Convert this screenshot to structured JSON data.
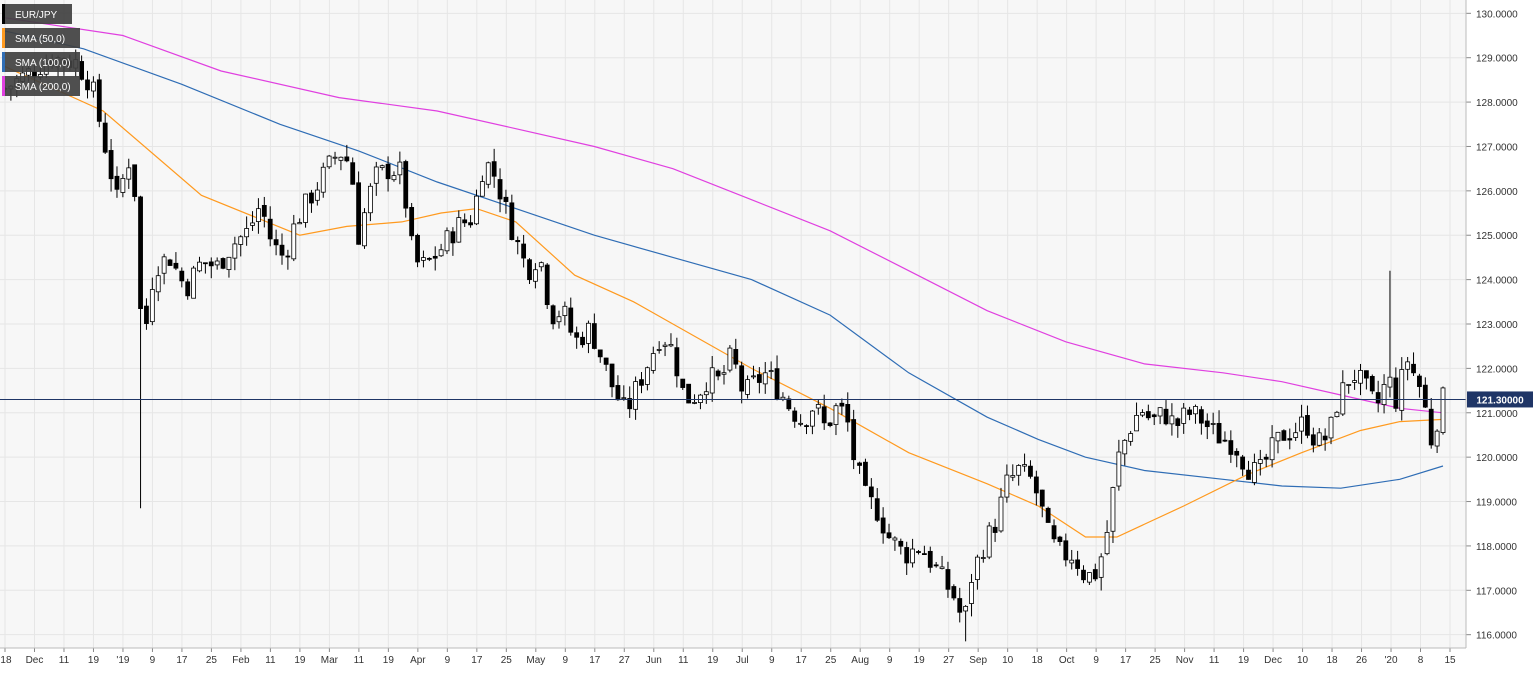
{
  "colors": {
    "background": "#f7f7f7",
    "grid": "#e6e6e6",
    "candle": "#000000",
    "candle_up": "#ffffff",
    "sma50": "#ff9a1f",
    "sma100": "#2f6db5",
    "sma200": "#e040e0",
    "price_line": "#1f3566",
    "price_tag": "#1f3566",
    "legend_bg": "#404040",
    "axis_text": "#333333"
  },
  "chart_data": {
    "type": "candlestick",
    "symbol": "EUR/JPY",
    "timeframe": "daily",
    "ylim": [
      115.7,
      130.3
    ],
    "y_ticks": [
      "116.0000",
      "117.0000",
      "118.0000",
      "119.0000",
      "120.0000",
      "121.0000",
      "122.0000",
      "123.0000",
      "124.0000",
      "125.0000",
      "126.0000",
      "127.0000",
      "128.0000",
      "129.0000",
      "130.0000"
    ],
    "x_ticks": [
      "'18",
      "Dec",
      "11",
      "19",
      "'19",
      "9",
      "17",
      "25",
      "Feb",
      "11",
      "19",
      "Mar",
      "11",
      "19",
      "Apr",
      "9",
      "17",
      "25",
      "May",
      "9",
      "17",
      "27",
      "Jun",
      "11",
      "19",
      "Jul",
      "9",
      "17",
      "25",
      "Aug",
      "9",
      "19",
      "27",
      "Sep",
      "10",
      "18",
      "Oct",
      "9",
      "17",
      "25",
      "Nov",
      "11",
      "19",
      "Dec",
      "10",
      "18",
      "26",
      "'20",
      "8",
      "15"
    ],
    "grid": true,
    "legend_position": "top-left",
    "legend": [
      {
        "label": "EUR/JPY",
        "color": "#000000"
      },
      {
        "label": "SMA (50,0)",
        "color": "#ff9a1f"
      },
      {
        "label": "SMA (100,0)",
        "color": "#2f6db5"
      },
      {
        "label": "SMA (200,0)",
        "color": "#e040e0"
      }
    ],
    "last_price": 121.3,
    "last_price_label": "121.30000",
    "close_path": [
      [
        0,
        128.3
      ],
      [
        5,
        128.6
      ],
      [
        12,
        129.0
      ],
      [
        18,
        128.9
      ],
      [
        22,
        128.4
      ],
      [
        26,
        126.8
      ],
      [
        29,
        125.6
      ],
      [
        31,
        126.9
      ],
      [
        33,
        126.0
      ],
      [
        35,
        122.4
      ],
      [
        38,
        124.3
      ],
      [
        42,
        124.5
      ],
      [
        46,
        123.8
      ],
      [
        50,
        124.4
      ],
      [
        54,
        124.3
      ],
      [
        58,
        124.8
      ],
      [
        62,
        125.1
      ],
      [
        65,
        125.7
      ],
      [
        68,
        124.8
      ],
      [
        71,
        124.5
      ],
      [
        74,
        125.3
      ],
      [
        78,
        125.9
      ],
      [
        82,
        126.5
      ],
      [
        85,
        126.9
      ],
      [
        88,
        126.6
      ],
      [
        90,
        125.0
      ],
      [
        94,
        126.3
      ],
      [
        98,
        126.5
      ],
      [
        101,
        126.4
      ],
      [
        104,
        124.4
      ],
      [
        107,
        124.3
      ],
      [
        111,
        124.7
      ],
      [
        115,
        125.2
      ],
      [
        119,
        125.4
      ],
      [
        122,
        126.7
      ],
      [
        125,
        126.3
      ],
      [
        127,
        125.7
      ],
      [
        130,
        124.9
      ],
      [
        133,
        124.2
      ],
      [
        136,
        124.6
      ],
      [
        139,
        123.2
      ],
      [
        142,
        123.3
      ],
      [
        145,
        122.6
      ],
      [
        149,
        122.9
      ],
      [
        152,
        122.2
      ],
      [
        155,
        121.5
      ],
      [
        158,
        121.0
      ],
      [
        161,
        121.6
      ],
      [
        164,
        122.2
      ],
      [
        167,
        122.8
      ],
      [
        170,
        122.4
      ],
      [
        173,
        121.3
      ],
      [
        176,
        121.4
      ],
      [
        179,
        121.8
      ],
      [
        182,
        121.7
      ],
      [
        185,
        122.3
      ],
      [
        188,
        121.4
      ],
      [
        191,
        121.7
      ],
      [
        194,
        121.9
      ],
      [
        197,
        121.5
      ],
      [
        200,
        121.1
      ],
      [
        203,
        120.8
      ],
      [
        206,
        121.2
      ],
      [
        209,
        120.6
      ],
      [
        211,
        121.1
      ],
      [
        214,
        121.0
      ],
      [
        216,
        120.0
      ],
      [
        219,
        119.1
      ],
      [
        222,
        118.8
      ],
      [
        225,
        118.2
      ],
      [
        229,
        117.8
      ],
      [
        233,
        118.0
      ],
      [
        236,
        117.6
      ],
      [
        239,
        117.2
      ],
      [
        242,
        116.8
      ],
      [
        244,
        116.2
      ],
      [
        246,
        117.3
      ],
      [
        249,
        118.0
      ],
      [
        252,
        118.5
      ],
      [
        255,
        119.4
      ],
      [
        258,
        119.7
      ],
      [
        261,
        119.5
      ],
      [
        263,
        119.1
      ],
      [
        266,
        118.1
      ],
      [
        269,
        117.8
      ],
      [
        272,
        117.8
      ],
      [
        275,
        117.3
      ],
      [
        278,
        117.4
      ],
      [
        281,
        118.5
      ],
      [
        283,
        119.9
      ],
      [
        286,
        120.6
      ],
      [
        289,
        121.1
      ],
      [
        292,
        120.8
      ],
      [
        295,
        121.0
      ],
      [
        298,
        120.7
      ],
      [
        301,
        121.0
      ],
      [
        304,
        120.9
      ],
      [
        307,
        120.6
      ],
      [
        310,
        120.4
      ],
      [
        313,
        120.3
      ],
      [
        316,
        119.8
      ],
      [
        319,
        119.6
      ],
      [
        322,
        120.1
      ],
      [
        325,
        120.5
      ],
      [
        328,
        120.6
      ],
      [
        331,
        120.8
      ],
      [
        334,
        120.3
      ],
      [
        337,
        120.5
      ],
      [
        339,
        121.2
      ],
      [
        341,
        121.6
      ],
      [
        343,
        121.9
      ],
      [
        346,
        121.6
      ],
      [
        349,
        121.1
      ],
      [
        352,
        121.8
      ],
      [
        354,
        121.3
      ],
      [
        357,
        122.2
      ],
      [
        360,
        121.6
      ],
      [
        362,
        120.9
      ],
      [
        363,
        120.4
      ],
      [
        366,
        121.3
      ]
    ],
    "sma50": [
      [
        0,
        128.8
      ],
      [
        25,
        127.8
      ],
      [
        50,
        125.9
      ],
      [
        75,
        125.0
      ],
      [
        87,
        125.2
      ],
      [
        101,
        125.3
      ],
      [
        111,
        125.5
      ],
      [
        120,
        125.6
      ],
      [
        130,
        125.3
      ],
      [
        145,
        124.1
      ],
      [
        160,
        123.5
      ],
      [
        170,
        123.0
      ],
      [
        190,
        122.0
      ],
      [
        210,
        121.1
      ],
      [
        230,
        120.1
      ],
      [
        250,
        119.4
      ],
      [
        263,
        118.9
      ],
      [
        275,
        118.2
      ],
      [
        283,
        118.2
      ],
      [
        300,
        118.9
      ],
      [
        316,
        119.6
      ],
      [
        330,
        120.1
      ],
      [
        345,
        120.6
      ],
      [
        355,
        120.8
      ],
      [
        366,
        120.85
      ]
    ],
    "sma100": [
      [
        0,
        129.6
      ],
      [
        20,
        129.2
      ],
      [
        45,
        128.4
      ],
      [
        70,
        127.5
      ],
      [
        90,
        126.9
      ],
      [
        110,
        126.2
      ],
      [
        130,
        125.6
      ],
      [
        150,
        125.0
      ],
      [
        170,
        124.5
      ],
      [
        190,
        124.0
      ],
      [
        210,
        123.2
      ],
      [
        230,
        121.9
      ],
      [
        250,
        120.9
      ],
      [
        263,
        120.4
      ],
      [
        275,
        120.0
      ],
      [
        290,
        119.7
      ],
      [
        310,
        119.5
      ],
      [
        325,
        119.35
      ],
      [
        340,
        119.3
      ],
      [
        355,
        119.5
      ],
      [
        366,
        119.8
      ]
    ],
    "sma200": [
      [
        0,
        129.9
      ],
      [
        30,
        129.5
      ],
      [
        55,
        128.7
      ],
      [
        85,
        128.1
      ],
      [
        110,
        127.8
      ],
      [
        130,
        127.4
      ],
      [
        150,
        127.0
      ],
      [
        170,
        126.5
      ],
      [
        190,
        125.8
      ],
      [
        210,
        125.1
      ],
      [
        230,
        124.2
      ],
      [
        250,
        123.3
      ],
      [
        270,
        122.6
      ],
      [
        290,
        122.1
      ],
      [
        310,
        121.9
      ],
      [
        325,
        121.7
      ],
      [
        340,
        121.4
      ],
      [
        355,
        121.1
      ],
      [
        366,
        121.0
      ]
    ]
  }
}
